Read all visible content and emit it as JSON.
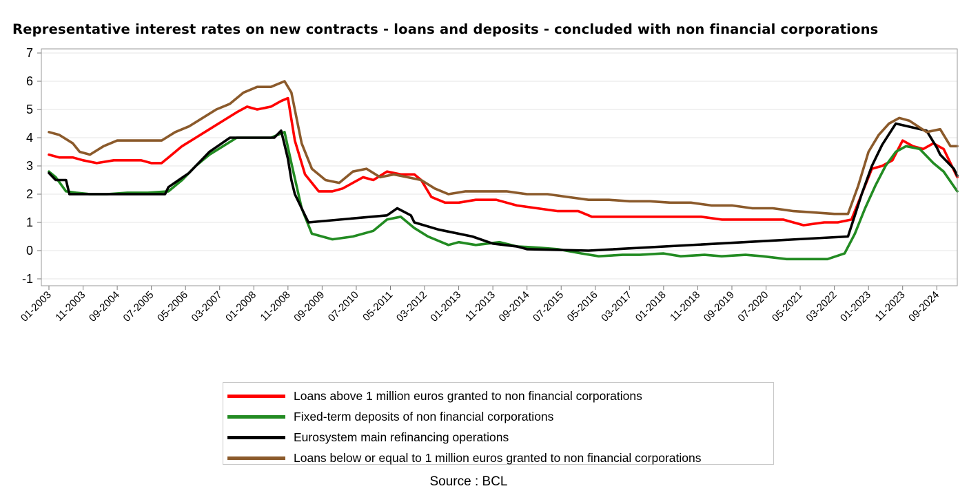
{
  "chart_data": {
    "type": "line",
    "title": "Representative interest rates on new contracts - loans and deposits - concluded with non financial corporations",
    "source": "Source : BCL",
    "xlabel": "",
    "ylabel": "",
    "ylim": [
      -1,
      7
    ],
    "xlim": [
      "2003-01",
      "2025-03"
    ],
    "yticks": [
      -1,
      0,
      1,
      2,
      3,
      4,
      5,
      6,
      7
    ],
    "xticks": [
      "01-2003",
      "11-2003",
      "09-2004",
      "07-2005",
      "05-2006",
      "03-2007",
      "01-2008",
      "11-2008",
      "09-2009",
      "07-2010",
      "05-2011",
      "03-2012",
      "01-2013",
      "11-2013",
      "09-2014",
      "07-2015",
      "05-2016",
      "03-2017",
      "01-2018",
      "11-2018",
      "09-2019",
      "07-2020",
      "05-2021",
      "03-2022",
      "01-2023",
      "11-2023",
      "09-2024"
    ],
    "grid": "horizontal",
    "legend_position": "bottom",
    "series": [
      {
        "name": "Loans above 1 million euros granted to non financial corporations",
        "color": "#ff0000",
        "points": [
          [
            "2003-01",
            3.4
          ],
          [
            "2003-04",
            3.3
          ],
          [
            "2003-08",
            3.3
          ],
          [
            "2003-11",
            3.2
          ],
          [
            "2004-03",
            3.1
          ],
          [
            "2004-08",
            3.2
          ],
          [
            "2004-12",
            3.2
          ],
          [
            "2005-04",
            3.2
          ],
          [
            "2005-07",
            3.1
          ],
          [
            "2005-10",
            3.1
          ],
          [
            "2005-12",
            3.3
          ],
          [
            "2006-04",
            3.7
          ],
          [
            "2006-08",
            4.0
          ],
          [
            "2006-12",
            4.3
          ],
          [
            "2007-04",
            4.6
          ],
          [
            "2007-08",
            4.9
          ],
          [
            "2007-11",
            5.1
          ],
          [
            "2008-02",
            5.0
          ],
          [
            "2008-06",
            5.1
          ],
          [
            "2008-09",
            5.3
          ],
          [
            "2008-11",
            5.4
          ],
          [
            "2009-01",
            3.9
          ],
          [
            "2009-04",
            2.7
          ],
          [
            "2009-08",
            2.1
          ],
          [
            "2009-12",
            2.1
          ],
          [
            "2010-03",
            2.2
          ],
          [
            "2010-06",
            2.4
          ],
          [
            "2010-09",
            2.6
          ],
          [
            "2010-12",
            2.5
          ],
          [
            "2011-04",
            2.8
          ],
          [
            "2011-08",
            2.7
          ],
          [
            "2011-12",
            2.7
          ],
          [
            "2012-02",
            2.5
          ],
          [
            "2012-05",
            1.9
          ],
          [
            "2012-09",
            1.7
          ],
          [
            "2013-01",
            1.7
          ],
          [
            "2013-06",
            1.8
          ],
          [
            "2013-12",
            1.8
          ],
          [
            "2014-06",
            1.6
          ],
          [
            "2014-12",
            1.5
          ],
          [
            "2015-06",
            1.4
          ],
          [
            "2015-12",
            1.4
          ],
          [
            "2016-04",
            1.2
          ],
          [
            "2016-12",
            1.2
          ],
          [
            "2017-06",
            1.2
          ],
          [
            "2017-12",
            1.2
          ],
          [
            "2018-06",
            1.2
          ],
          [
            "2018-12",
            1.2
          ],
          [
            "2019-06",
            1.1
          ],
          [
            "2019-12",
            1.1
          ],
          [
            "2020-06",
            1.1
          ],
          [
            "2020-12",
            1.1
          ],
          [
            "2021-06",
            0.9
          ],
          [
            "2021-12",
            1.0
          ],
          [
            "2022-04",
            1.0
          ],
          [
            "2022-08",
            1.1
          ],
          [
            "2022-11",
            2.0
          ],
          [
            "2023-02",
            2.9
          ],
          [
            "2023-05",
            3.0
          ],
          [
            "2023-08",
            3.2
          ],
          [
            "2023-11",
            3.9
          ],
          [
            "2024-02",
            3.7
          ],
          [
            "2024-05",
            3.6
          ],
          [
            "2024-08",
            3.8
          ],
          [
            "2024-11",
            3.6
          ],
          [
            "2025-03",
            2.6
          ]
        ]
      },
      {
        "name": "Fixed-term deposits of non financial corporations",
        "color": "#228b22",
        "points": [
          [
            "2003-01",
            2.8
          ],
          [
            "2003-03",
            2.6
          ],
          [
            "2003-06",
            2.1
          ],
          [
            "2003-09",
            2.05
          ],
          [
            "2004-01",
            2.0
          ],
          [
            "2004-06",
            2.0
          ],
          [
            "2004-12",
            2.05
          ],
          [
            "2005-06",
            2.05
          ],
          [
            "2005-12",
            2.1
          ],
          [
            "2006-04",
            2.5
          ],
          [
            "2006-08",
            3.0
          ],
          [
            "2006-12",
            3.4
          ],
          [
            "2007-04",
            3.7
          ],
          [
            "2007-08",
            4.0
          ],
          [
            "2008-02",
            4.0
          ],
          [
            "2008-06",
            4.0
          ],
          [
            "2008-10",
            4.2
          ],
          [
            "2008-12",
            3.1
          ],
          [
            "2009-03",
            1.5
          ],
          [
            "2009-06",
            0.6
          ],
          [
            "2009-12",
            0.4
          ],
          [
            "2010-06",
            0.5
          ],
          [
            "2010-12",
            0.7
          ],
          [
            "2011-04",
            1.1
          ],
          [
            "2011-08",
            1.2
          ],
          [
            "2011-12",
            0.8
          ],
          [
            "2012-04",
            0.5
          ],
          [
            "2012-10",
            0.2
          ],
          [
            "2013-01",
            0.3
          ],
          [
            "2013-06",
            0.2
          ],
          [
            "2014-01",
            0.3
          ],
          [
            "2014-06",
            0.15
          ],
          [
            "2015-01",
            0.1
          ],
          [
            "2015-06",
            0.05
          ],
          [
            "2016-01",
            -0.1
          ],
          [
            "2016-06",
            -0.2
          ],
          [
            "2017-01",
            -0.15
          ],
          [
            "2017-06",
            -0.15
          ],
          [
            "2018-01",
            -0.1
          ],
          [
            "2018-06",
            -0.2
          ],
          [
            "2019-01",
            -0.15
          ],
          [
            "2019-06",
            -0.2
          ],
          [
            "2020-01",
            -0.15
          ],
          [
            "2020-06",
            -0.2
          ],
          [
            "2021-01",
            -0.3
          ],
          [
            "2021-06",
            -0.3
          ],
          [
            "2022-01",
            -0.3
          ],
          [
            "2022-06",
            -0.1
          ],
          [
            "2022-09",
            0.6
          ],
          [
            "2022-12",
            1.5
          ],
          [
            "2023-03",
            2.3
          ],
          [
            "2023-06",
            3.0
          ],
          [
            "2023-09",
            3.5
          ],
          [
            "2023-12",
            3.7
          ],
          [
            "2024-04",
            3.6
          ],
          [
            "2024-08",
            3.1
          ],
          [
            "2024-11",
            2.8
          ],
          [
            "2025-03",
            2.1
          ]
        ]
      },
      {
        "name": "Eurosystem main refinancing operations",
        "color": "#000000",
        "points": [
          [
            "2003-01",
            2.75
          ],
          [
            "2003-03",
            2.5
          ],
          [
            "2003-06",
            2.5
          ],
          [
            "2003-07",
            2.0
          ],
          [
            "2005-11",
            2.0
          ],
          [
            "2005-12",
            2.25
          ],
          [
            "2006-03",
            2.5
          ],
          [
            "2006-06",
            2.75
          ],
          [
            "2006-08",
            3.0
          ],
          [
            "2006-10",
            3.25
          ],
          [
            "2006-12",
            3.5
          ],
          [
            "2007-03",
            3.75
          ],
          [
            "2007-06",
            4.0
          ],
          [
            "2008-07",
            4.0
          ],
          [
            "2008-09",
            4.25
          ],
          [
            "2008-10",
            3.75
          ],
          [
            "2008-11",
            3.25
          ],
          [
            "2008-12",
            2.5
          ],
          [
            "2009-01",
            2.0
          ],
          [
            "2009-03",
            1.5
          ],
          [
            "2009-04",
            1.25
          ],
          [
            "2009-05",
            1.0
          ],
          [
            "2011-04",
            1.25
          ],
          [
            "2011-07",
            1.5
          ],
          [
            "2011-11",
            1.25
          ],
          [
            "2011-12",
            1.0
          ],
          [
            "2012-07",
            0.75
          ],
          [
            "2013-05",
            0.5
          ],
          [
            "2013-11",
            0.25
          ],
          [
            "2014-06",
            0.15
          ],
          [
            "2014-09",
            0.05
          ],
          [
            "2016-03",
            0.0
          ],
          [
            "2022-07",
            0.5
          ],
          [
            "2022-09",
            1.25
          ],
          [
            "2022-11",
            2.0
          ],
          [
            "2023-02",
            3.0
          ],
          [
            "2023-05",
            3.75
          ],
          [
            "2023-09",
            4.5
          ],
          [
            "2024-06",
            4.25
          ],
          [
            "2024-09",
            3.65
          ],
          [
            "2024-10",
            3.4
          ],
          [
            "2024-12",
            3.15
          ],
          [
            "2025-02",
            2.9
          ],
          [
            "2025-03",
            2.65
          ]
        ]
      },
      {
        "name": "Loans below or equal to 1 million euros granted to non financial corporations",
        "color": "#8b5a2b",
        "points": [
          [
            "2003-01",
            4.2
          ],
          [
            "2003-04",
            4.1
          ],
          [
            "2003-08",
            3.8
          ],
          [
            "2003-10",
            3.5
          ],
          [
            "2004-01",
            3.4
          ],
          [
            "2004-05",
            3.7
          ],
          [
            "2004-09",
            3.9
          ],
          [
            "2005-01",
            3.9
          ],
          [
            "2005-06",
            3.9
          ],
          [
            "2005-10",
            3.9
          ],
          [
            "2006-02",
            4.2
          ],
          [
            "2006-06",
            4.4
          ],
          [
            "2006-10",
            4.7
          ],
          [
            "2007-02",
            5.0
          ],
          [
            "2007-06",
            5.2
          ],
          [
            "2007-10",
            5.6
          ],
          [
            "2008-02",
            5.8
          ],
          [
            "2008-06",
            5.8
          ],
          [
            "2008-10",
            6.0
          ],
          [
            "2008-12",
            5.6
          ],
          [
            "2009-03",
            3.8
          ],
          [
            "2009-06",
            2.9
          ],
          [
            "2009-10",
            2.5
          ],
          [
            "2010-02",
            2.4
          ],
          [
            "2010-06",
            2.8
          ],
          [
            "2010-10",
            2.9
          ],
          [
            "2011-02",
            2.6
          ],
          [
            "2011-06",
            2.7
          ],
          [
            "2011-10",
            2.6
          ],
          [
            "2012-02",
            2.5
          ],
          [
            "2012-06",
            2.2
          ],
          [
            "2012-10",
            2.0
          ],
          [
            "2013-03",
            2.1
          ],
          [
            "2013-09",
            2.1
          ],
          [
            "2014-03",
            2.1
          ],
          [
            "2014-09",
            2.0
          ],
          [
            "2015-03",
            2.0
          ],
          [
            "2015-09",
            1.9
          ],
          [
            "2016-03",
            1.8
          ],
          [
            "2016-09",
            1.8
          ],
          [
            "2017-03",
            1.75
          ],
          [
            "2017-09",
            1.75
          ],
          [
            "2018-03",
            1.7
          ],
          [
            "2018-09",
            1.7
          ],
          [
            "2019-03",
            1.6
          ],
          [
            "2019-09",
            1.6
          ],
          [
            "2020-03",
            1.5
          ],
          [
            "2020-09",
            1.5
          ],
          [
            "2021-03",
            1.4
          ],
          [
            "2021-09",
            1.35
          ],
          [
            "2022-03",
            1.3
          ],
          [
            "2022-07",
            1.3
          ],
          [
            "2022-10",
            2.3
          ],
          [
            "2023-01",
            3.5
          ],
          [
            "2023-04",
            4.1
          ],
          [
            "2023-07",
            4.5
          ],
          [
            "2023-10",
            4.7
          ],
          [
            "2024-01",
            4.6
          ],
          [
            "2024-06",
            4.2
          ],
          [
            "2024-10",
            4.3
          ],
          [
            "2025-01",
            3.7
          ],
          [
            "2025-03",
            3.7
          ]
        ]
      }
    ]
  }
}
